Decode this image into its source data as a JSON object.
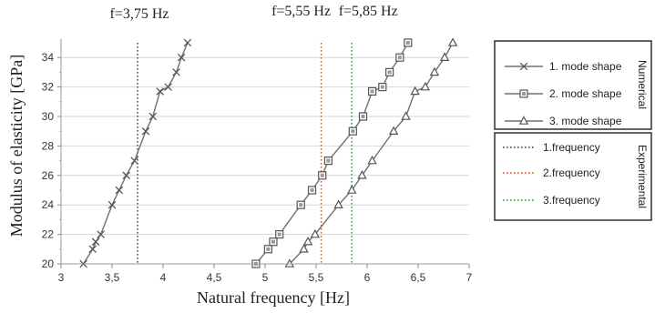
{
  "chart_data": {
    "type": "line",
    "xlabel": "Natural frequency [Hz]",
    "ylabel": "Modulus of elasticity [GPa]",
    "xlim": [
      3,
      7
    ],
    "ylim": [
      20,
      35
    ],
    "x_ticks": [
      "3",
      "3,5",
      "4",
      "4,5",
      "5",
      "5,5",
      "6",
      "6,5",
      "7"
    ],
    "y_ticks": [
      "20",
      "22",
      "24",
      "26",
      "28",
      "30",
      "32",
      "34"
    ],
    "grid": "horizontal",
    "series": [
      {
        "name": "1. mode shape",
        "marker": "x",
        "color": "#707070",
        "points": [
          [
            3.22,
            20
          ],
          [
            3.31,
            21
          ],
          [
            3.34,
            21.5
          ],
          [
            3.39,
            22
          ],
          [
            3.5,
            24
          ],
          [
            3.57,
            25
          ],
          [
            3.64,
            26
          ],
          [
            3.72,
            27
          ],
          [
            3.83,
            29
          ],
          [
            3.9,
            30
          ],
          [
            3.97,
            31.7
          ],
          [
            4.05,
            32
          ],
          [
            4.13,
            33
          ],
          [
            4.18,
            34
          ],
          [
            4.24,
            35
          ]
        ]
      },
      {
        "name": "2. mode shape",
        "marker": "square",
        "color": "#707070",
        "points": [
          [
            4.91,
            20
          ],
          [
            5.03,
            21
          ],
          [
            5.08,
            21.5
          ],
          [
            5.14,
            22
          ],
          [
            5.35,
            24
          ],
          [
            5.46,
            25
          ],
          [
            5.56,
            26
          ],
          [
            5.62,
            27
          ],
          [
            5.86,
            29
          ],
          [
            5.96,
            30
          ],
          [
            6.05,
            31.7
          ],
          [
            6.15,
            32
          ],
          [
            6.22,
            33
          ],
          [
            6.32,
            34
          ],
          [
            6.4,
            35
          ]
        ]
      },
      {
        "name": "3. mode shape",
        "marker": "triangle",
        "color": "#707070",
        "points": [
          [
            5.24,
            20
          ],
          [
            5.38,
            21
          ],
          [
            5.42,
            21.5
          ],
          [
            5.49,
            22
          ],
          [
            5.72,
            24
          ],
          [
            5.85,
            25
          ],
          [
            5.95,
            26
          ],
          [
            6.05,
            27
          ],
          [
            6.26,
            29
          ],
          [
            6.38,
            30
          ],
          [
            6.47,
            31.7
          ],
          [
            6.57,
            32
          ],
          [
            6.66,
            33
          ],
          [
            6.76,
            34
          ],
          [
            6.84,
            35
          ]
        ]
      }
    ],
    "frequency_lines": [
      {
        "name": "1.frequency",
        "x": 3.75,
        "label": "f=3,75 Hz",
        "color": "#555555"
      },
      {
        "name": "2.frequency",
        "x": 5.55,
        "label": "f=5,55 Hz",
        "color": "#e8623a"
      },
      {
        "name": "3.frequency",
        "x": 5.85,
        "label": "f=5,85 Hz",
        "color": "#3aa645"
      }
    ],
    "legend": {
      "placement": "right",
      "numerical_title": "Numerical",
      "experimental_title": "Experimental"
    }
  }
}
